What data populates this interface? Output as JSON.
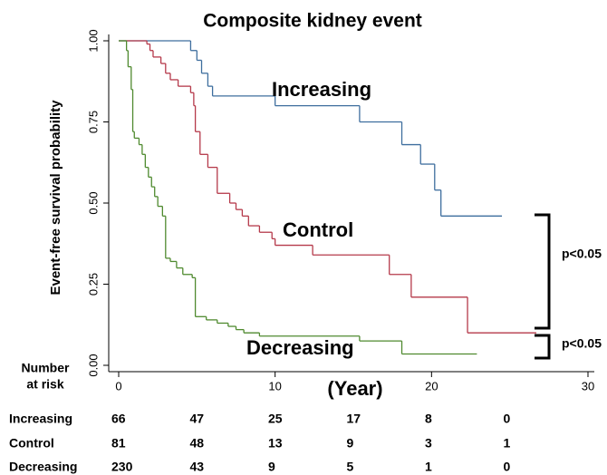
{
  "chart_data": {
    "type": "km",
    "title": "Composite kidney event",
    "ylabel": "Event-free survival probability",
    "xlabel": "(Year)",
    "xlim": [
      0,
      30
    ],
    "xticks": [
      0,
      10,
      20,
      30
    ],
    "ylim": [
      0,
      1
    ],
    "yticks": [
      {
        "value": 0,
        "label": "0.00"
      },
      {
        "value": 0.25,
        "label": "0.25"
      },
      {
        "value": 0.5,
        "label": "0.50"
      },
      {
        "value": 0.75,
        "label": "0.75"
      },
      {
        "value": 1,
        "label": "1.00"
      }
    ],
    "series": [
      {
        "name": "Increasing",
        "color": "#3e6e9e",
        "x": [
          0,
          4.6,
          5.0,
          5.3,
          5.7,
          6.0,
          10.0,
          15.4,
          18.1,
          19.3,
          20.2,
          20.6,
          24.5
        ],
        "values": [
          1.0,
          0.97,
          0.94,
          0.9,
          0.86,
          0.83,
          0.8,
          0.75,
          0.68,
          0.62,
          0.54,
          0.46,
          0.46
        ]
      },
      {
        "name": "Control",
        "color": "#b5394a",
        "x": [
          0,
          1.8,
          2.0,
          2.2,
          2.7,
          3.0,
          3.3,
          3.8,
          4.6,
          4.8,
          4.9,
          5.2,
          5.7,
          6.3,
          7.1,
          7.5,
          7.9,
          8.3,
          9.0,
          9.8,
          10.0,
          12.4,
          17.3,
          18.7,
          22.3,
          26.7
        ],
        "values": [
          1.0,
          0.99,
          0.97,
          0.95,
          0.93,
          0.9,
          0.88,
          0.86,
          0.84,
          0.8,
          0.72,
          0.65,
          0.61,
          0.53,
          0.5,
          0.48,
          0.46,
          0.43,
          0.41,
          0.39,
          0.37,
          0.34,
          0.28,
          0.21,
          0.1,
          0.1
        ]
      },
      {
        "name": "Decreasing",
        "color": "#4f8a2f",
        "x": [
          0,
          0.5,
          0.6,
          0.8,
          0.9,
          1.0,
          1.3,
          1.5,
          1.7,
          1.9,
          2.1,
          2.3,
          2.5,
          2.8,
          3.0,
          3.3,
          3.7,
          4.1,
          4.7,
          4.9,
          5.6,
          6.3,
          7.0,
          7.5,
          8.0,
          9.0,
          15.4,
          18.1,
          22.9
        ],
        "values": [
          1.0,
          0.97,
          0.92,
          0.85,
          0.72,
          0.7,
          0.68,
          0.65,
          0.61,
          0.58,
          0.55,
          0.52,
          0.49,
          0.46,
          0.33,
          0.32,
          0.3,
          0.28,
          0.27,
          0.15,
          0.14,
          0.13,
          0.12,
          0.11,
          0.1,
          0.09,
          0.075,
          0.035,
          0.035
        ]
      }
    ],
    "annotations": [
      "p<0.05",
      "p<0.05"
    ],
    "risk_table": {
      "title": [
        "Number",
        "at risk"
      ],
      "rows": [
        {
          "label": "Increasing",
          "counts": [
            66,
            47,
            25,
            17,
            8,
            0
          ]
        },
        {
          "label": "Control",
          "counts": [
            81,
            48,
            13,
            9,
            3,
            1
          ]
        },
        {
          "label": "Decreasing",
          "counts": [
            230,
            43,
            9,
            5,
            1,
            0
          ]
        }
      ]
    }
  }
}
